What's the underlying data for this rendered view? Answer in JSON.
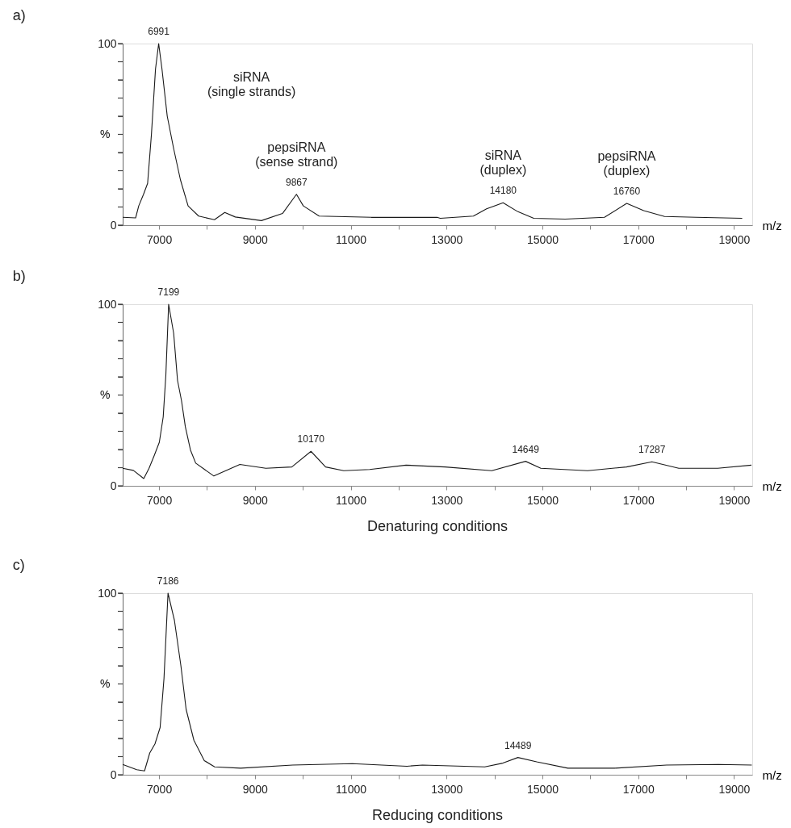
{
  "chart_data": [
    {
      "type": "line",
      "title": "a)",
      "xlabel": "m/z",
      "ylabel": "%",
      "grid": false,
      "xlim": [
        6240,
        19380
      ],
      "ylim": [
        0,
        100
      ],
      "xticks": [
        7000,
        {
          "value": 8000,
          "label": null
        },
        9000,
        {
          "value": 10000,
          "label": null
        },
        11000,
        {
          "value": 12000,
          "label": null
        },
        13000,
        {
          "value": 14000,
          "label": null
        },
        15000,
        {
          "value": 16000,
          "label": null
        },
        17000,
        {
          "value": 18000,
          "label": null
        },
        19000
      ],
      "yticks": [
        0,
        {
          "value": 10,
          "label": null
        },
        {
          "value": 20,
          "label": null
        },
        {
          "value": 30,
          "label": null
        },
        {
          "value": 40,
          "label": null
        },
        {
          "value": 50,
          "label": null
        },
        {
          "value": 60,
          "label": null
        },
        {
          "value": 70,
          "label": null
        },
        {
          "value": 80,
          "label": null
        },
        {
          "value": 90,
          "label": null
        },
        100
      ],
      "x": [
        6240,
        6510,
        6575,
        6675,
        6760,
        6840,
        6925,
        6991,
        7060,
        7170,
        7305,
        7445,
        7605,
        7825,
        8155,
        8370,
        8590,
        9135,
        9575,
        9867,
        10010,
        10340,
        11430,
        12800,
        12870,
        13560,
        13835,
        14180,
        14490,
        14820,
        15475,
        16295,
        16760,
        17115,
        17550,
        18210,
        19170
      ],
      "series": [
        {
          "color": "#1a1a1a",
          "values": [
            4.3,
            4,
            10.6,
            17,
            23,
            50,
            86,
            100,
            86,
            60,
            42,
            25,
            10.6,
            5,
            3,
            7,
            4.5,
            2.5,
            6.4,
            17,
            10.6,
            5,
            4.3,
            4.3,
            3.8,
            5,
            9,
            12.3,
            7.4,
            3.8,
            3.3,
            4.3,
            12,
            8,
            4.8,
            4.3,
            3.8
          ]
        }
      ],
      "annotations": [
        {
          "text": "6991",
          "x": 6991,
          "y": 100
        },
        {
          "text": "9867",
          "x": 9867,
          "y": 17
        },
        {
          "text": "14180",
          "x": 14180,
          "y": 12.3
        },
        {
          "text": "16760",
          "x": 16760,
          "y": 12
        },
        "siRNA\n(single strands)",
        "pepsiRNA\n(sense strand)",
        "siRNA\n(duplex)",
        "pepsiRNA\n(duplex)"
      ]
    },
    {
      "type": "line",
      "title": "b)",
      "xlabel": "m/z",
      "ylabel": "%",
      "grid": false,
      "xlim": [
        6240,
        19380
      ],
      "ylim": [
        0,
        100
      ],
      "xticks": [
        7000,
        {
          "value": 8000,
          "label": null
        },
        9000,
        {
          "value": 10000,
          "label": null
        },
        11000,
        {
          "value": 12000,
          "label": null
        },
        13000,
        {
          "value": 14000,
          "label": null
        },
        15000,
        {
          "value": 16000,
          "label": null
        },
        17000,
        {
          "value": 18000,
          "label": null
        },
        19000
      ],
      "yticks": [
        0,
        {
          "value": 10,
          "label": null
        },
        {
          "value": 20,
          "label": null
        },
        {
          "value": 30,
          "label": null
        },
        {
          "value": 40,
          "label": null
        },
        {
          "value": 50,
          "label": null
        },
        {
          "value": 60,
          "label": null
        },
        {
          "value": 70,
          "label": null
        },
        {
          "value": 80,
          "label": null
        },
        {
          "value": 90,
          "label": null
        },
        100
      ],
      "x": [
        6240,
        6463,
        6680,
        6790,
        6900,
        7005,
        7086,
        7141,
        7199,
        7304,
        7385,
        7467,
        7548,
        7655,
        7764,
        8143,
        8686,
        9228,
        9770,
        10170,
        10475,
        10854,
        11395,
        12154,
        12967,
        13943,
        14649,
        14967,
        15943,
        16756,
        17287,
        17846,
        18659,
        19362
      ],
      "series": [
        {
          "color": "#1a1a1a",
          "values": [
            9.7,
            8.5,
            4,
            9.7,
            16.8,
            24,
            38,
            61,
            100,
            84,
            58,
            47,
            32.5,
            19.7,
            12.5,
            5.4,
            11.8,
            9.7,
            10.4,
            19,
            10.4,
            8.3,
            9,
            11.4,
            10.4,
            8.3,
            13.5,
            9.7,
            8.3,
            10.4,
            13.2,
            9.7,
            9.7,
            11.4
          ]
        }
      ],
      "annotations": [
        {
          "text": "7199",
          "x": 7199,
          "y": 100
        },
        {
          "text": "10170",
          "x": 10170,
          "y": 19
        },
        {
          "text": "14649",
          "x": 14649,
          "y": 13.5
        },
        {
          "text": "17287",
          "x": 17287,
          "y": 13.2
        },
        "Denaturing conditions"
      ]
    },
    {
      "type": "line",
      "title": "c)",
      "xlabel": "m/z",
      "ylabel": "%",
      "grid": false,
      "xlim": [
        6240,
        19380
      ],
      "ylim": [
        0,
        100
      ],
      "xticks": [
        7000,
        {
          "value": 8000,
          "label": null
        },
        9000,
        {
          "value": 10000,
          "label": null
        },
        11000,
        {
          "value": 12000,
          "label": null
        },
        13000,
        {
          "value": 14000,
          "label": null
        },
        15000,
        {
          "value": 16000,
          "label": null
        },
        17000,
        {
          "value": 18000,
          "label": null
        },
        19000
      ],
      "yticks": [
        0,
        {
          "value": 10,
          "label": null
        },
        {
          "value": 20,
          "label": null
        },
        {
          "value": 30,
          "label": null
        },
        {
          "value": 40,
          "label": null
        },
        {
          "value": 50,
          "label": null
        },
        {
          "value": 60,
          "label": null
        },
        {
          "value": 70,
          "label": null
        },
        {
          "value": 80,
          "label": null
        },
        {
          "value": 90,
          "label": null
        },
        100
      ],
      "x": [
        6240,
        6533,
        6696,
        6805,
        6914,
        7021,
        7102,
        7186,
        7320,
        7455,
        7564,
        7726,
        7943,
        8159,
        8702,
        9786,
        11033,
        12171,
        12496,
        13797,
        14176,
        14489,
        14881,
        15531,
        16507,
        17590,
        18675,
        19370
      ],
      "series": [
        {
          "color": "#1a1a1a",
          "values": [
            5.7,
            2.8,
            2.1,
            12,
            17,
            26,
            53,
            100,
            85,
            60,
            36,
            19,
            7.8,
            4.3,
            3.6,
            5.3,
            6.1,
            4.7,
            5.3,
            4.3,
            6.4,
            9.5,
            7.1,
            3.6,
            3.6,
            5.3,
            5.7,
            5.3
          ]
        }
      ],
      "annotations": [
        {
          "text": "7186",
          "x": 7186,
          "y": 100
        },
        {
          "text": "14489",
          "x": 14489,
          "y": 9.5
        },
        "Reducing conditions"
      ]
    }
  ]
}
